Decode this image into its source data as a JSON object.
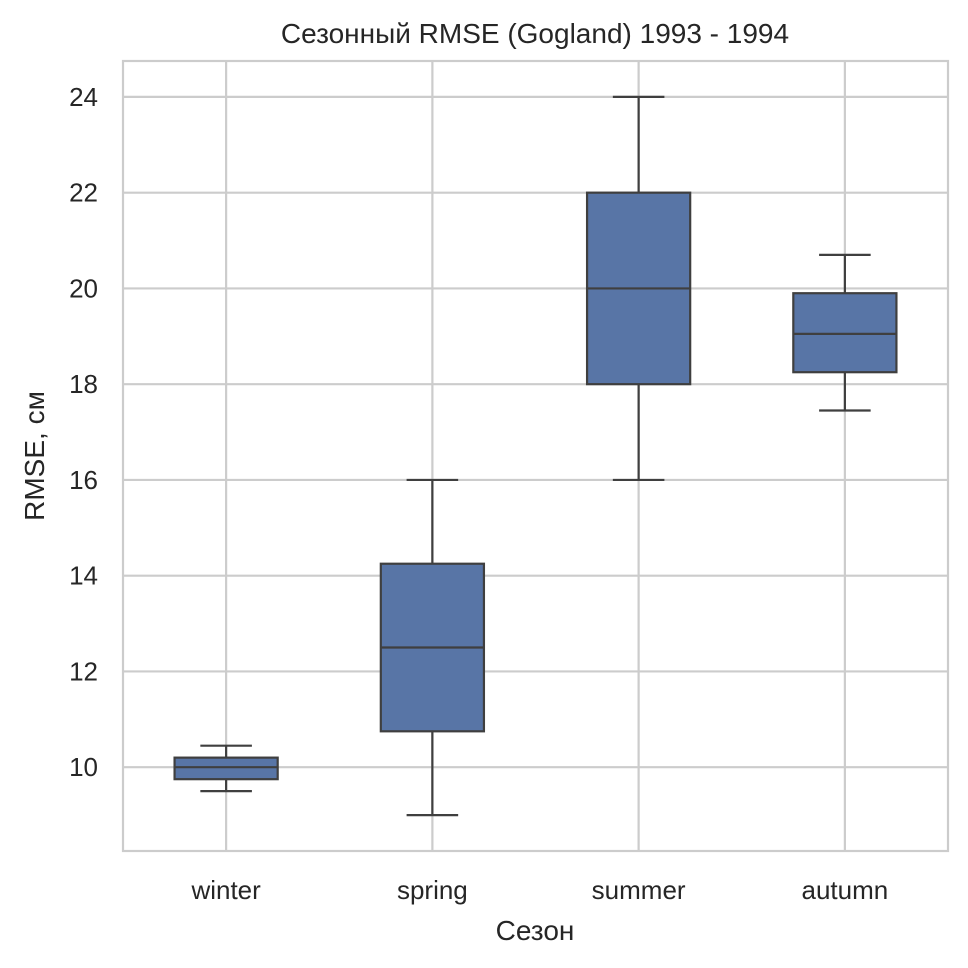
{
  "chart_data": {
    "type": "box",
    "title": "Сезонный RMSE (Gogland) 1993 - 1994",
    "xlabel": "Сезон",
    "ylabel": "RMSE, см",
    "categories": [
      "winter",
      "spring",
      "summer",
      "autumn"
    ],
    "boxes": [
      {
        "category": "winter",
        "whisker_low": 9.5,
        "q1": 9.75,
        "median": 10.0,
        "q3": 10.2,
        "whisker_high": 10.45
      },
      {
        "category": "spring",
        "whisker_low": 9.0,
        "q1": 10.75,
        "median": 12.5,
        "q3": 14.25,
        "whisker_high": 16.0
      },
      {
        "category": "summer",
        "whisker_low": 16.0,
        "q1": 18.0,
        "median": 20.0,
        "q3": 22.0,
        "whisker_high": 24.0
      },
      {
        "category": "autumn",
        "whisker_low": 17.45,
        "q1": 18.25,
        "median": 19.05,
        "q3": 19.9,
        "whisker_high": 20.7
      }
    ],
    "yticks": [
      10,
      12,
      14,
      16,
      18,
      20,
      22,
      24
    ],
    "ylim": [
      8.25,
      24.75
    ],
    "grid": true,
    "box_color": "#5875a6",
    "line_color": "#3f3f3f",
    "grid_color": "#cccccc"
  }
}
